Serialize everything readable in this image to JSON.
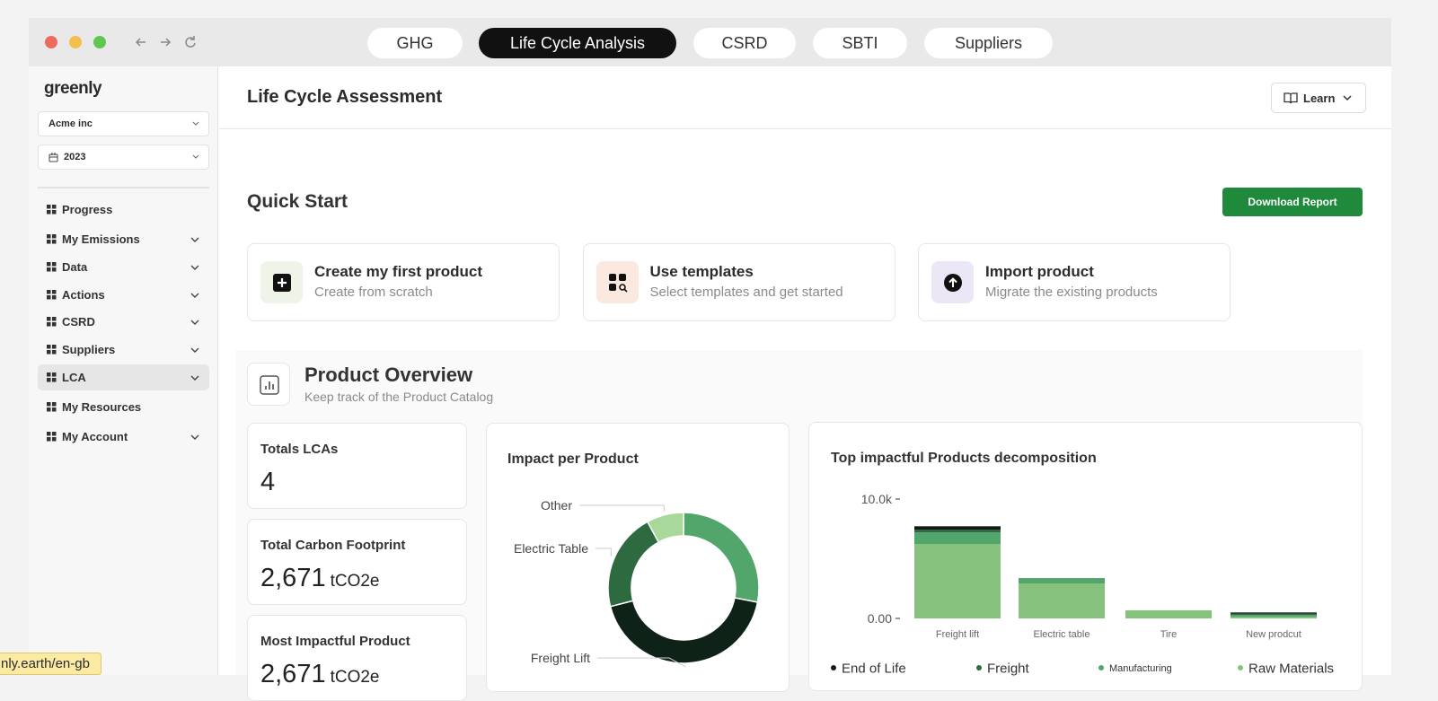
{
  "browser": {
    "tabs": [
      "GHG",
      "Life Cycle Analysis",
      "CSRD",
      "SBTI",
      "Suppliers"
    ],
    "active_tab": 1
  },
  "sidebar": {
    "logo": "greenly",
    "company": "Acme inc",
    "year": "2023",
    "menu": [
      "Progress",
      "My Emissions",
      "Data",
      "Actions",
      "CSRD",
      "Suppliers",
      "LCA",
      "My Resources",
      "My Account"
    ],
    "active_item": 6
  },
  "header": {
    "title": "Life Cycle Assessment",
    "learn": "Learn"
  },
  "quick_start": {
    "title": "Quick Start",
    "download": "Download Report",
    "cards": [
      {
        "title": "Create my first product",
        "subtitle": "Create from scratch"
      },
      {
        "title": "Use templates",
        "subtitle": "Select templates and get started"
      },
      {
        "title": "Import product",
        "subtitle": "Migrate the existing products"
      }
    ]
  },
  "overview": {
    "title": "Product Overview",
    "subtitle": "Keep track of the Product Catalog",
    "stats": [
      {
        "label": "Totals LCAs",
        "value": "4"
      },
      {
        "label": "Total Carbon Footprint",
        "value": "2,671",
        "unit": "tCO2e"
      },
      {
        "label": "Most Impactful Product",
        "value": "2,671",
        "unit": "tCO2e"
      }
    ]
  },
  "status_url": "nly.earth/en-gb",
  "chart_data": [
    {
      "type": "donut",
      "title": "Impact per Product",
      "categories": [
        "Other",
        null,
        "Freight Lift",
        "Electric Table"
      ],
      "values": [
        8,
        28,
        43,
        21
      ],
      "colors": [
        "#a9d89b",
        "#52a56b",
        "#0f2218",
        "#2d6a40"
      ]
    },
    {
      "type": "stacked_bar",
      "title": "Top impactful Products decomposition",
      "categories": [
        "Freight lift",
        "Electric table",
        "Tire",
        "New prodcut"
      ],
      "series": [
        {
          "name": "Raw Materials",
          "color": "#86c27e",
          "values": [
            6240,
            2930,
            680,
            150
          ]
        },
        {
          "name": "Manufacturing",
          "color": "#52a56b",
          "values": [
            980,
            450,
            0,
            150
          ]
        },
        {
          "name": "Freight",
          "color": "#2d6a40",
          "values": [
            200,
            0,
            0,
            100
          ]
        },
        {
          "name": "End of Life",
          "color": "#111a14",
          "values": [
            300,
            0,
            0,
            100
          ]
        }
      ],
      "ylim": [
        0,
        10000
      ],
      "yticks": [
        {
          "value": 0,
          "label": "0.00"
        },
        {
          "value": 10000,
          "label": "10.0k"
        }
      ]
    }
  ]
}
